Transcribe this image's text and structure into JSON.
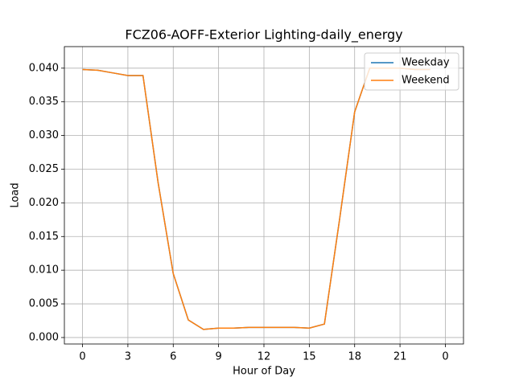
{
  "chart_data": {
    "type": "line",
    "title": "FCZ06-AOFF-Exterior Lighting-daily_energy",
    "x_label": "Hour of Day",
    "y_label": "Load",
    "x": [
      0,
      1,
      2,
      3,
      4,
      5,
      6,
      7,
      8,
      9,
      10,
      11,
      12,
      13,
      14,
      15,
      16,
      17,
      18,
      19,
      20,
      21,
      22,
      23
    ],
    "series": [
      {
        "name": "Weekday",
        "color": "#1f77b4",
        "values": [
          0.0398,
          0.0397,
          0.0393,
          0.0389,
          0.0389,
          0.023,
          0.0095,
          0.0026,
          0.0012,
          0.0014,
          0.0014,
          0.0015,
          0.0015,
          0.0015,
          0.0015,
          0.0014,
          0.002,
          0.0175,
          0.0335,
          0.04,
          0.04,
          0.04,
          0.0398,
          0.0398
        ]
      },
      {
        "name": "Weekend",
        "color": "#ff7f0e",
        "values": [
          0.0398,
          0.0397,
          0.0393,
          0.0389,
          0.0389,
          0.023,
          0.0095,
          0.0026,
          0.0012,
          0.0014,
          0.0014,
          0.0015,
          0.0015,
          0.0015,
          0.0015,
          0.0014,
          0.002,
          0.0175,
          0.0335,
          0.04,
          0.04,
          0.04,
          0.0398,
          0.0398
        ]
      }
    ],
    "xlim": [
      -1.2,
      25.2
    ],
    "xticks": [
      0,
      3,
      6,
      9,
      12,
      15,
      18,
      21,
      {
        "value": 24,
        "label": "0"
      }
    ],
    "ylim": [
      -0.00096,
      0.0432
    ],
    "yticks": [
      {
        "value": 0,
        "label": "0.000"
      },
      {
        "value": 0.005,
        "label": "0.005"
      },
      {
        "value": 0.01,
        "label": "0.010"
      },
      {
        "value": 0.015,
        "label": "0.015"
      },
      {
        "value": 0.02,
        "label": "0.020"
      },
      {
        "value": 0.025,
        "label": "0.025"
      },
      {
        "value": 0.03,
        "label": "0.030"
      },
      {
        "value": 0.035,
        "label": "0.035"
      },
      {
        "value": 0.04,
        "label": "0.040"
      }
    ],
    "grid": true,
    "legend": "upper right"
  }
}
